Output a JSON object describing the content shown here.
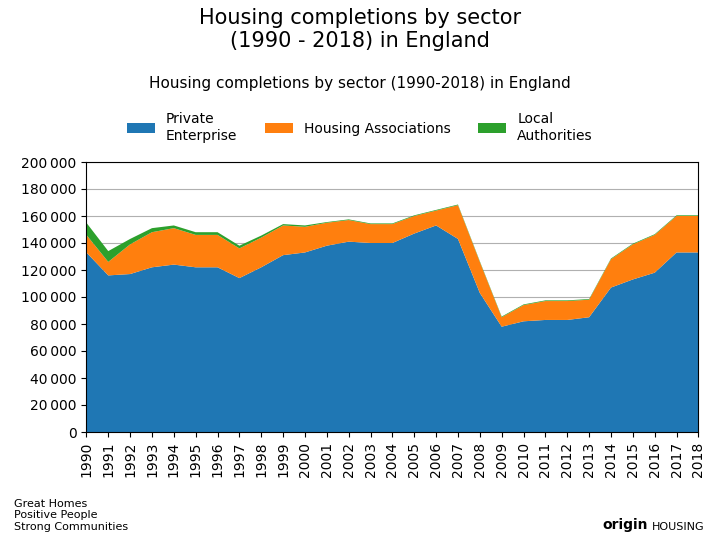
{
  "chart_data": {
    "type": "area",
    "stacked": true,
    "title": "Housing completions by sector\n(1990 - 2018) in England",
    "subtitle": "Housing completions by sector (1990-2018) in England",
    "annotations": [
      "Great Homes\nPositive People\nStrong Communities",
      "origin",
      "HOUSING"
    ],
    "x": [
      1990,
      1991,
      1992,
      1993,
      1994,
      1995,
      1996,
      1997,
      1998,
      1999,
      2000,
      2001,
      2002,
      2003,
      2004,
      2005,
      2006,
      2007,
      2008,
      2009,
      2010,
      2011,
      2012,
      2013,
      2014,
      2015,
      2016,
      2017,
      2018
    ],
    "series": [
      {
        "name": "Private\nEnterprise",
        "values": [
          133000,
          116000,
          117000,
          122000,
          124000,
          122000,
          122000,
          114000,
          122000,
          131000,
          133000,
          138000,
          141000,
          140000,
          140000,
          147000,
          153000,
          143000,
          103000,
          78000,
          82000,
          83000,
          83000,
          85000,
          107000,
          113000,
          118000,
          133000,
          133000
        ]
      },
      {
        "name": "Housing Associations",
        "values": [
          13000,
          10000,
          22000,
          26000,
          27000,
          24000,
          24000,
          22000,
          22000,
          22000,
          19000,
          17000,
          16000,
          14000,
          14000,
          13000,
          11000,
          25000,
          23000,
          7000,
          12000,
          14000,
          14000,
          13000,
          21000,
          26000,
          28000,
          27000,
          27000
        ]
      },
      {
        "name": "Local\nAuthorities",
        "values": [
          9000,
          8000,
          4000,
          3000,
          2000,
          2000,
          2000,
          2000,
          1500,
          1000,
          1000,
          500,
          500,
          500,
          500,
          500,
          500,
          500,
          500,
          500,
          500,
          500,
          500,
          500,
          500,
          500,
          500,
          500,
          500
        ]
      }
    ],
    "xlim": [
      1990,
      2018
    ],
    "xticks": [
      1990,
      1991,
      1992,
      1993,
      1994,
      1995,
      1996,
      1997,
      1998,
      1999,
      2000,
      2001,
      2002,
      2003,
      2004,
      2005,
      2006,
      2007,
      2008,
      2009,
      2010,
      2011,
      2012,
      2013,
      2014,
      2015,
      2016,
      2017,
      2018
    ],
    "ylim": [
      0,
      200000
    ],
    "yticks": [
      0,
      {
        "value": 20000,
        "label": "20 000"
      },
      {
        "value": 40000,
        "label": "40 000"
      },
      {
        "value": 60000,
        "label": "60 000"
      },
      {
        "value": 80000,
        "label": "80 000"
      },
      {
        "value": 100000,
        "label": "100 000"
      },
      {
        "value": 120000,
        "label": "120 000"
      },
      {
        "value": 140000,
        "label": "140 000"
      },
      {
        "value": 160000,
        "label": "160 000"
      },
      {
        "value": 180000,
        "label": "180 000"
      },
      {
        "value": 200000,
        "label": "200 000"
      }
    ],
    "grid": true,
    "legend": "upper center"
  }
}
